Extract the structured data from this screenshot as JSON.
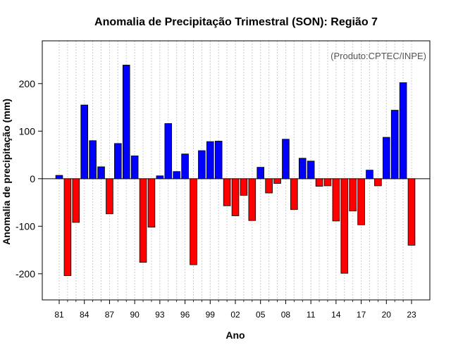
{
  "chart_data": {
    "type": "bar",
    "title": "Anomalia de Precipitação Trimestral (SON): Região 7",
    "xlabel": "Ano",
    "ylabel": "Anomalia de precipitação (mm)",
    "annotation": "(Produto:CPTEC/INPE)",
    "ylim": [
      -255,
      290
    ],
    "yticks": [
      -200,
      -100,
      0,
      100,
      200
    ],
    "ytick_labels": [
      "-200",
      "-100",
      "0",
      "100",
      "200"
    ],
    "xtick_labels": [
      "81",
      "84",
      "87",
      "90",
      "93",
      "96",
      "99",
      "02",
      "05",
      "08",
      "11",
      "14",
      "17",
      "20",
      "23"
    ],
    "xtick_every": 3,
    "years": [
      "1981",
      "1982",
      "1983",
      "1984",
      "1985",
      "1986",
      "1987",
      "1988",
      "1989",
      "1990",
      "1991",
      "1992",
      "1993",
      "1994",
      "1995",
      "1996",
      "1997",
      "1998",
      "1999",
      "2000",
      "2001",
      "2002",
      "2003",
      "2004",
      "2005",
      "2006",
      "2007",
      "2008",
      "2009",
      "2010",
      "2011",
      "2012",
      "2013",
      "2014",
      "2015",
      "2016",
      "2017",
      "2018",
      "2019",
      "2020",
      "2021",
      "2022",
      "2023"
    ],
    "values": [
      7,
      -204,
      -92,
      155,
      80,
      25,
      -74,
      74,
      239,
      48,
      -176,
      -102,
      6,
      116,
      15,
      52,
      -181,
      59,
      78,
      79,
      -57,
      -78,
      -35,
      -88,
      24,
      -30,
      -10,
      83,
      -65,
      43,
      37,
      -16,
      -15,
      -89,
      -199,
      -68,
      -97,
      18,
      -15,
      87,
      144,
      202,
      -140
    ],
    "grid": true,
    "colors": {
      "positive": "#0000ff",
      "negative": "#ff0000",
      "grid": "#cccccc",
      "frame": "#000000"
    }
  }
}
